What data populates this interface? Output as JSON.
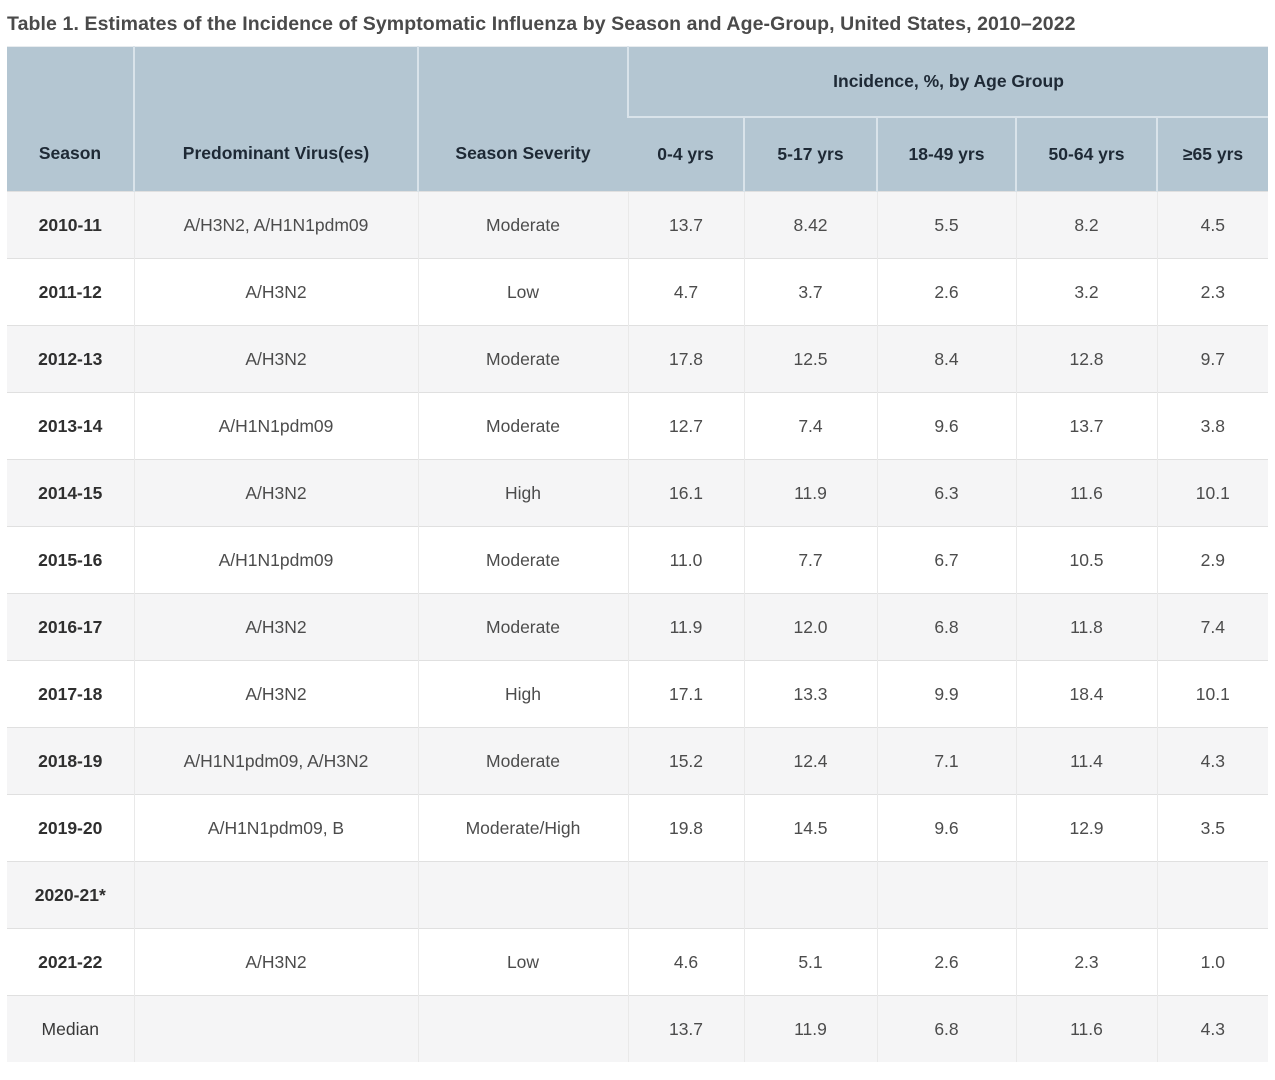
{
  "title": "Table 1. Estimates of the Incidence of Symptomatic Influenza by Season and Age-Group, United States, 2010–2022",
  "table": {
    "columns": [
      "Season",
      "Predominant Virus(es)",
      "Season Severity"
    ],
    "group_header": "Incidence, %, by Age Group",
    "age_columns": [
      "0-4 yrs",
      "5-17 yrs",
      "18-49 yrs",
      "50-64 yrs",
      "≥65 yrs"
    ],
    "rows": [
      {
        "season": "2010-11",
        "virus": "A/H3N2, A/H1N1pdm09",
        "severity": "Moderate",
        "values": [
          "13.7",
          "8.42",
          "5.5",
          "8.2",
          "4.5"
        ]
      },
      {
        "season": "2011-12",
        "virus": "A/H3N2",
        "severity": "Low",
        "values": [
          "4.7",
          "3.7",
          "2.6",
          "3.2",
          "2.3"
        ]
      },
      {
        "season": "2012-13",
        "virus": "A/H3N2",
        "severity": "Moderate",
        "values": [
          "17.8",
          "12.5",
          "8.4",
          "12.8",
          "9.7"
        ]
      },
      {
        "season": "2013-14",
        "virus": "A/H1N1pdm09",
        "severity": "Moderate",
        "values": [
          "12.7",
          "7.4",
          "9.6",
          "13.7",
          "3.8"
        ]
      },
      {
        "season": "2014-15",
        "virus": "A/H3N2",
        "severity": "High",
        "values": [
          "16.1",
          "11.9",
          "6.3",
          "11.6",
          "10.1"
        ]
      },
      {
        "season": "2015-16",
        "virus": "A/H1N1pdm09",
        "severity": "Moderate",
        "values": [
          "11.0",
          "7.7",
          "6.7",
          "10.5",
          "2.9"
        ]
      },
      {
        "season": "2016-17",
        "virus": "A/H3N2",
        "severity": "Moderate",
        "values": [
          "11.9",
          "12.0",
          "6.8",
          "11.8",
          "7.4"
        ]
      },
      {
        "season": "2017-18",
        "virus": "A/H3N2",
        "severity": "High",
        "values": [
          "17.1",
          "13.3",
          "9.9",
          "18.4",
          "10.1"
        ]
      },
      {
        "season": "2018-19",
        "virus": "A/H1N1pdm09, A/H3N2",
        "severity": "Moderate",
        "values": [
          "15.2",
          "12.4",
          "7.1",
          "11.4",
          "4.3"
        ]
      },
      {
        "season": "2019-20",
        "virus": "A/H1N1pdm09, B",
        "severity": "Moderate/High",
        "values": [
          "19.8",
          "14.5",
          "9.6",
          "12.9",
          "3.5"
        ]
      },
      {
        "season": "2020-21*",
        "virus": "",
        "severity": "",
        "values": [
          "",
          "",
          "",
          "",
          ""
        ]
      },
      {
        "season": "2021-22",
        "virus": "A/H3N2",
        "severity": "Low",
        "values": [
          "4.6",
          "5.1",
          "2.6",
          "2.3",
          "1.0"
        ]
      },
      {
        "season": "Median",
        "virus": "",
        "severity": "",
        "values": [
          "13.7",
          "11.9",
          "6.8",
          "11.6",
          "4.3"
        ]
      }
    ]
  },
  "colors": {
    "header_bg": "#b4c6d2",
    "header_text": "#1e2935",
    "stripe_row_bg": "#f5f5f6",
    "white_row_bg": "#ffffff",
    "body_text": "#4c4c4c",
    "caption_text": "#4a4a4a"
  }
}
